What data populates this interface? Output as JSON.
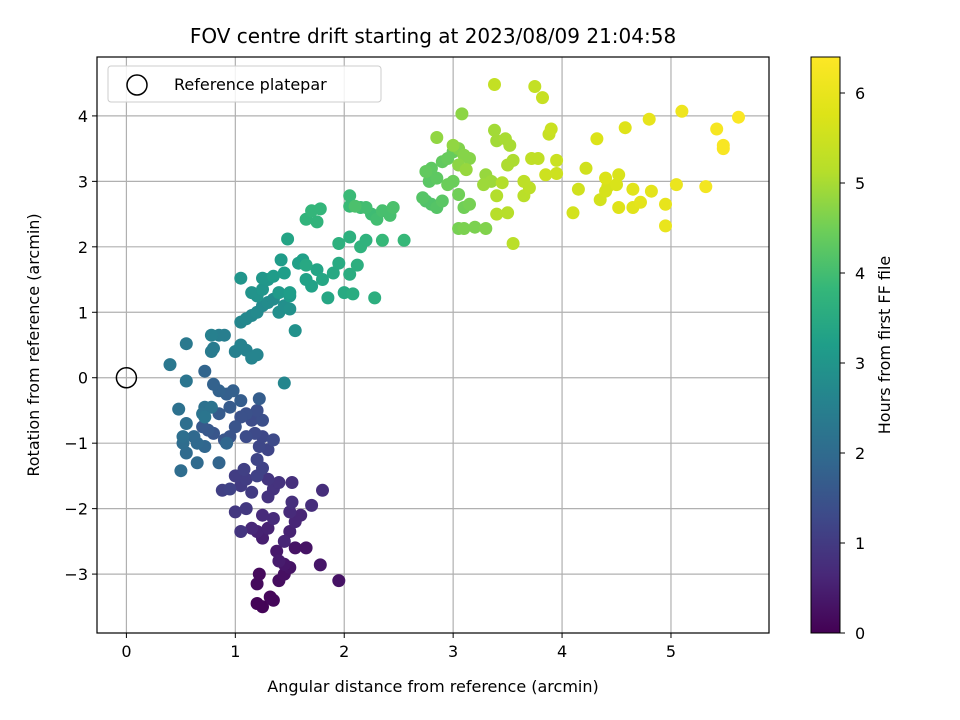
{
  "chart_data": {
    "type": "scatter",
    "title": "FOV centre drift starting at 2023/08/09 21:04:58",
    "xlabel": "Angular distance from reference (arcmin)",
    "ylabel": "Rotation from reference (arcmin)",
    "xlim": [
      -0.27,
      5.9
    ],
    "ylim": [
      -3.9,
      4.9
    ],
    "xticks": [
      0,
      1,
      2,
      3,
      4,
      5
    ],
    "yticks": [
      -3,
      -2,
      -1,
      0,
      1,
      2,
      3,
      4
    ],
    "grid": true,
    "legend": {
      "placement": "top-left",
      "entries": [
        {
          "label": "Reference platepar",
          "marker": "open-circle"
        }
      ]
    },
    "reference_point": {
      "x": 0,
      "y": 0
    },
    "colorbar": {
      "label": "Hours from first FF file",
      "min": 0,
      "max": 6.4,
      "ticks": [
        0,
        1,
        2,
        3,
        4,
        5,
        6
      ],
      "colormap": "viridis"
    },
    "points": [
      [
        1.2,
        -3.45,
        0.05
      ],
      [
        1.25,
        -3.5,
        0.05
      ],
      [
        1.35,
        -3.4,
        0.1
      ],
      [
        1.32,
        -3.35,
        0.1
      ],
      [
        1.2,
        -3.15,
        0.15
      ],
      [
        1.22,
        -3.0,
        0.15
      ],
      [
        1.4,
        -3.1,
        0.2
      ],
      [
        1.45,
        -3.0,
        0.25
      ],
      [
        1.55,
        -2.6,
        0.3
      ],
      [
        1.65,
        -2.6,
        0.3
      ],
      [
        1.5,
        -2.9,
        0.3
      ],
      [
        1.45,
        -2.85,
        0.35
      ],
      [
        1.95,
        -3.1,
        0.3
      ],
      [
        1.78,
        -2.86,
        0.35
      ],
      [
        1.38,
        -2.65,
        0.4
      ],
      [
        1.4,
        -2.8,
        0.45
      ],
      [
        1.25,
        -2.45,
        0.5
      ],
      [
        1.2,
        -2.35,
        0.55
      ],
      [
        1.3,
        -2.3,
        0.55
      ],
      [
        1.5,
        -2.35,
        0.55
      ],
      [
        1.55,
        -2.2,
        0.6
      ],
      [
        1.6,
        -2.1,
        0.6
      ],
      [
        1.45,
        -2.5,
        0.6
      ],
      [
        1.15,
        -2.3,
        0.65
      ],
      [
        1.35,
        -2.15,
        0.7
      ],
      [
        1.25,
        -2.1,
        0.7
      ],
      [
        1.5,
        -2.05,
        0.7
      ],
      [
        1.7,
        -1.95,
        0.75
      ],
      [
        1.8,
        -1.72,
        0.75
      ],
      [
        1.52,
        -1.9,
        0.8
      ],
      [
        1.52,
        -1.6,
        0.8
      ],
      [
        1.35,
        -1.7,
        0.85
      ],
      [
        1.3,
        -1.82,
        0.85
      ],
      [
        1.4,
        -1.6,
        0.85
      ],
      [
        1.3,
        -1.55,
        0.9
      ],
      [
        1.05,
        -2.35,
        0.9
      ],
      [
        1.0,
        -2.05,
        0.95
      ],
      [
        1.1,
        -2.0,
        0.95
      ],
      [
        1.15,
        -1.75,
        1.0
      ],
      [
        1.05,
        -1.65,
        1.0
      ],
      [
        1.1,
        -1.55,
        1.05
      ],
      [
        1.0,
        -1.5,
        1.05
      ],
      [
        1.08,
        -1.4,
        1.1
      ],
      [
        0.88,
        -1.72,
        1.1
      ],
      [
        0.95,
        -1.7,
        1.15
      ],
      [
        1.2,
        -1.5,
        1.15
      ],
      [
        1.25,
        -1.38,
        1.15
      ],
      [
        1.2,
        -1.25,
        1.2
      ],
      [
        1.3,
        -1.1,
        1.2
      ],
      [
        1.22,
        -1.05,
        1.25
      ],
      [
        1.25,
        -0.9,
        1.25
      ],
      [
        1.35,
        -0.95,
        1.3
      ],
      [
        1.18,
        -0.85,
        1.3
      ],
      [
        1.1,
        -0.9,
        1.35
      ],
      [
        1.15,
        -0.65,
        1.35
      ],
      [
        1.25,
        -0.65,
        1.4
      ],
      [
        1.2,
        -0.5,
        1.4
      ],
      [
        1.1,
        -0.55,
        1.45
      ],
      [
        1.05,
        -0.6,
        1.45
      ],
      [
        1.0,
        -0.75,
        1.5
      ],
      [
        0.95,
        -0.9,
        1.5
      ],
      [
        0.9,
        -0.95,
        1.55
      ],
      [
        0.8,
        -0.85,
        1.55
      ],
      [
        0.75,
        -0.8,
        1.6
      ],
      [
        0.7,
        -0.75,
        1.6
      ],
      [
        0.85,
        -0.55,
        1.65
      ],
      [
        0.95,
        -0.45,
        1.65
      ],
      [
        1.05,
        -0.35,
        1.7
      ],
      [
        1.22,
        -0.32,
        1.7
      ],
      [
        0.92,
        -0.25,
        1.75
      ],
      [
        0.98,
        -0.2,
        1.75
      ],
      [
        0.85,
        -0.2,
        1.8
      ],
      [
        0.8,
        -0.1,
        1.8
      ],
      [
        0.72,
        0.1,
        1.85
      ],
      [
        0.85,
        -1.3,
        1.85
      ],
      [
        0.92,
        -1.0,
        1.9
      ],
      [
        0.72,
        -1.05,
        1.9
      ],
      [
        0.65,
        -1.0,
        1.95
      ],
      [
        0.62,
        -0.9,
        1.95
      ],
      [
        0.65,
        -1.3,
        2.0
      ],
      [
        0.55,
        -1.15,
        2.0
      ],
      [
        0.5,
        -1.42,
        2.05
      ],
      [
        0.52,
        -1.0,
        2.05
      ],
      [
        0.55,
        -0.7,
        2.1
      ],
      [
        0.52,
        -0.9,
        2.1
      ],
      [
        0.48,
        -0.48,
        2.15
      ],
      [
        0.72,
        -0.45,
        2.15
      ],
      [
        0.78,
        -0.45,
        2.2
      ],
      [
        0.7,
        -0.55,
        2.2
      ],
      [
        0.72,
        -0.6,
        2.25
      ],
      [
        0.55,
        -0.05,
        2.25
      ],
      [
        0.4,
        0.2,
        2.3
      ],
      [
        0.55,
        0.52,
        2.35
      ],
      [
        0.78,
        0.4,
        2.4
      ],
      [
        0.8,
        0.45,
        2.4
      ],
      [
        0.85,
        0.65,
        2.45
      ],
      [
        0.9,
        0.65,
        2.45
      ],
      [
        0.78,
        0.65,
        2.5
      ],
      [
        1.0,
        0.4,
        2.5
      ],
      [
        1.05,
        0.5,
        2.55
      ],
      [
        1.1,
        0.42,
        2.55
      ],
      [
        1.15,
        0.3,
        2.6
      ],
      [
        1.2,
        0.35,
        2.6
      ],
      [
        1.45,
        -0.08,
        2.65
      ],
      [
        1.05,
        0.85,
        2.65
      ],
      [
        1.1,
        0.9,
        2.7
      ],
      [
        1.15,
        0.95,
        2.7
      ],
      [
        1.2,
        1.0,
        2.75
      ],
      [
        1.25,
        1.1,
        2.75
      ],
      [
        1.3,
        1.15,
        2.8
      ],
      [
        1.35,
        1.2,
        2.8
      ],
      [
        1.4,
        1.0,
        2.85
      ],
      [
        1.45,
        1.1,
        2.85
      ],
      [
        1.5,
        1.05,
        2.9
      ],
      [
        1.55,
        0.72,
        2.9
      ],
      [
        1.2,
        1.25,
        2.95
      ],
      [
        1.15,
        1.3,
        2.95
      ],
      [
        1.05,
        1.52,
        3.0
      ],
      [
        1.25,
        1.35,
        3.0
      ],
      [
        1.3,
        1.5,
        3.05
      ],
      [
        1.25,
        1.52,
        3.05
      ],
      [
        1.4,
        1.3,
        3.1
      ],
      [
        1.5,
        1.25,
        3.1
      ],
      [
        1.35,
        1.55,
        3.15
      ],
      [
        1.42,
        1.8,
        3.15
      ],
      [
        1.45,
        1.6,
        3.2
      ],
      [
        1.5,
        1.3,
        3.2
      ],
      [
        1.58,
        1.75,
        3.25
      ],
      [
        1.62,
        1.8,
        3.25
      ],
      [
        1.65,
        1.5,
        3.3
      ],
      [
        1.7,
        1.4,
        3.3
      ],
      [
        1.75,
        1.65,
        3.35
      ],
      [
        1.48,
        2.12,
        3.35
      ],
      [
        1.8,
        1.5,
        3.4
      ],
      [
        1.85,
        1.22,
        3.4
      ],
      [
        1.65,
        1.72,
        3.45
      ],
      [
        1.9,
        1.6,
        3.45
      ],
      [
        1.95,
        1.75,
        3.5
      ],
      [
        2.0,
        1.3,
        3.5
      ],
      [
        2.08,
        1.28,
        3.55
      ],
      [
        2.05,
        1.58,
        3.55
      ],
      [
        2.12,
        1.72,
        3.6
      ],
      [
        2.28,
        1.22,
        3.6
      ],
      [
        1.95,
        2.05,
        3.65
      ],
      [
        2.05,
        2.15,
        3.65
      ],
      [
        2.15,
        2.0,
        3.7
      ],
      [
        2.2,
        2.1,
        3.7
      ],
      [
        1.65,
        2.42,
        3.75
      ],
      [
        1.75,
        2.38,
        3.75
      ],
      [
        1.7,
        2.55,
        3.8
      ],
      [
        1.78,
        2.58,
        3.8
      ],
      [
        2.35,
        2.1,
        3.85
      ],
      [
        2.55,
        2.1,
        3.85
      ],
      [
        2.05,
        2.62,
        3.9
      ],
      [
        2.05,
        2.78,
        3.9
      ],
      [
        2.15,
        2.6,
        3.95
      ],
      [
        2.25,
        2.5,
        3.95
      ],
      [
        2.2,
        2.6,
        4.0
      ],
      [
        2.3,
        2.42,
        4.0
      ],
      [
        2.35,
        2.55,
        4.05
      ],
      [
        2.42,
        2.48,
        4.05
      ],
      [
        2.45,
        2.6,
        4.1
      ],
      [
        2.1,
        2.62,
        4.1
      ],
      [
        2.8,
        2.65,
        4.15
      ],
      [
        2.75,
        2.7,
        4.15
      ],
      [
        2.85,
        2.6,
        4.2
      ],
      [
        2.72,
        2.75,
        4.2
      ],
      [
        2.9,
        2.7,
        4.25
      ],
      [
        2.78,
        3.0,
        4.25
      ],
      [
        2.85,
        3.05,
        4.3
      ],
      [
        2.8,
        3.2,
        4.3
      ],
      [
        2.75,
        3.15,
        4.35
      ],
      [
        2.9,
        3.3,
        4.35
      ],
      [
        2.95,
        3.35,
        4.4
      ],
      [
        3.0,
        3.45,
        4.4
      ],
      [
        3.0,
        3.0,
        4.45
      ],
      [
        2.95,
        2.95,
        4.45
      ],
      [
        3.05,
        2.8,
        4.5
      ],
      [
        3.1,
        2.6,
        4.5
      ],
      [
        3.15,
        2.65,
        4.55
      ],
      [
        3.05,
        2.28,
        4.55
      ],
      [
        3.1,
        2.28,
        4.6
      ],
      [
        3.2,
        2.3,
        4.6
      ],
      [
        3.3,
        2.28,
        4.65
      ],
      [
        3.05,
        3.5,
        4.65
      ],
      [
        3.1,
        3.4,
        4.7
      ],
      [
        3.15,
        3.35,
        4.7
      ],
      [
        3.05,
        3.25,
        4.75
      ],
      [
        3.08,
        4.03,
        4.75
      ],
      [
        2.85,
        3.67,
        4.8
      ],
      [
        3.0,
        3.55,
        4.8
      ],
      [
        3.12,
        3.18,
        4.85
      ],
      [
        3.3,
        3.1,
        4.85
      ],
      [
        3.35,
        3.0,
        4.9
      ],
      [
        3.28,
        2.95,
        4.9
      ],
      [
        3.4,
        3.62,
        4.95
      ],
      [
        3.38,
        3.78,
        4.95
      ],
      [
        3.48,
        3.65,
        5.0
      ],
      [
        3.52,
        3.55,
        5.0
      ],
      [
        3.55,
        3.32,
        5.05
      ],
      [
        3.5,
        3.25,
        5.05
      ],
      [
        3.45,
        2.98,
        5.1
      ],
      [
        3.4,
        2.78,
        5.1
      ],
      [
        3.4,
        2.5,
        5.15
      ],
      [
        3.5,
        2.52,
        5.15
      ],
      [
        3.55,
        2.05,
        5.2
      ],
      [
        3.65,
        2.78,
        5.2
      ],
      [
        3.7,
        2.9,
        5.25
      ],
      [
        3.65,
        3.0,
        5.25
      ],
      [
        3.72,
        3.35,
        5.3
      ],
      [
        3.78,
        3.35,
        5.3
      ],
      [
        3.38,
        4.48,
        5.35
      ],
      [
        3.75,
        4.45,
        5.35
      ],
      [
        3.82,
        4.28,
        5.4
      ],
      [
        3.88,
        3.72,
        5.4
      ],
      [
        3.9,
        3.8,
        5.45
      ],
      [
        3.95,
        3.32,
        5.45
      ],
      [
        3.95,
        3.12,
        5.5
      ],
      [
        3.85,
        3.1,
        5.5
      ],
      [
        4.22,
        3.2,
        5.55
      ],
      [
        4.15,
        2.88,
        5.55
      ],
      [
        4.1,
        2.52,
        5.6
      ],
      [
        4.35,
        2.72,
        5.6
      ],
      [
        4.4,
        2.85,
        5.65
      ],
      [
        4.42,
        2.92,
        5.65
      ],
      [
        4.5,
        2.95,
        5.7
      ],
      [
        4.52,
        3.1,
        5.7
      ],
      [
        4.4,
        3.05,
        5.75
      ],
      [
        4.32,
        3.65,
        5.75
      ],
      [
        4.58,
        3.82,
        5.8
      ],
      [
        4.52,
        2.6,
        5.8
      ],
      [
        4.65,
        2.88,
        5.85
      ],
      [
        4.65,
        2.6,
        5.85
      ],
      [
        4.72,
        2.68,
        5.9
      ],
      [
        4.82,
        2.85,
        5.9
      ],
      [
        4.8,
        3.95,
        5.95
      ],
      [
        4.95,
        2.65,
        5.95
      ],
      [
        4.95,
        2.32,
        6.0
      ],
      [
        5.05,
        2.95,
        6.05
      ],
      [
        5.1,
        4.07,
        6.1
      ],
      [
        5.32,
        2.92,
        6.2
      ],
      [
        5.42,
        3.8,
        6.25
      ],
      [
        5.48,
        3.5,
        6.3
      ],
      [
        5.48,
        3.55,
        6.3
      ],
      [
        5.62,
        3.98,
        6.35
      ]
    ]
  }
}
